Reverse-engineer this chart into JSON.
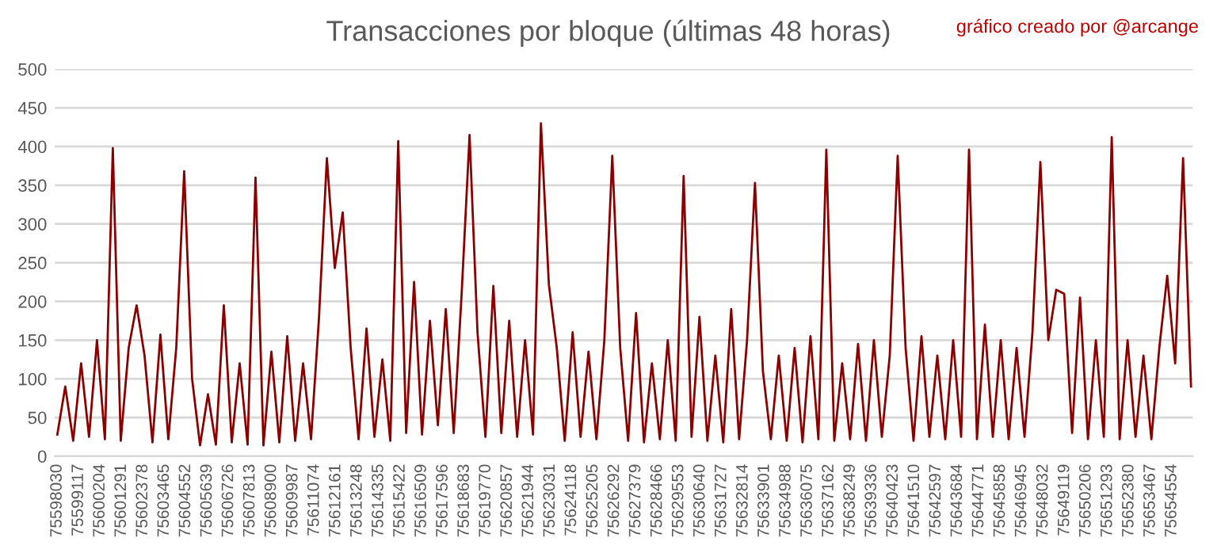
{
  "chart_data": {
    "type": "line",
    "title": "Transacciones por bloque (últimas 48 horas)",
    "annotations": [
      "gráfico creado por @arcange"
    ],
    "x": [
      75598030,
      75598432,
      75598834,
      75599236,
      75599638,
      75600040,
      75600442,
      75600844,
      75601246,
      75601648,
      75602050,
      75602452,
      75602854,
      75603256,
      75603658,
      75604060,
      75604462,
      75604864,
      75605266,
      75605668,
      75606070,
      75606472,
      75606874,
      75607276,
      75607678,
      75608080,
      75608482,
      75608884,
      75609286,
      75609688,
      75610090,
      75610492,
      75610894,
      75611296,
      75611698,
      75612100,
      75612502,
      75612904,
      75613306,
      75613708,
      75614110,
      75614512,
      75614914,
      75615316,
      75615718,
      75616120,
      75616522,
      75616924,
      75617326,
      75617728,
      75618130,
      75618532,
      75618934,
      75619336,
      75619738,
      75620140,
      75620542,
      75620944,
      75621346,
      75621748,
      75622150,
      75622552,
      75622954,
      75623356,
      75623758,
      75624160,
      75624562,
      75624964,
      75625366,
      75625768,
      75626170,
      75626572,
      75626974,
      75627376,
      75627778,
      75628180,
      75628582,
      75628984,
      75629386,
      75629788,
      75630190,
      75630592,
      75630994,
      75631396,
      75631798,
      75632200,
      75632602,
      75633004,
      75633406,
      75633808,
      75634210,
      75634612,
      75635014,
      75635416,
      75635818,
      75636220,
      75636622,
      75637024,
      75637426,
      75637828,
      75638230,
      75638632,
      75639034,
      75639436,
      75639838,
      75640240,
      75640642,
      75641044,
      75641446,
      75641848,
      75642250,
      75642652,
      75643054,
      75643456,
      75643858,
      75644260,
      75644662,
      75645064,
      75645466,
      75645868,
      75646270,
      75646672,
      75647074,
      75647476,
      75647878,
      75648280,
      75648682,
      75649084,
      75649486,
      75649888,
      75650290,
      75650692,
      75651094,
      75651496,
      75651898,
      75652300,
      75652702,
      75653104,
      75653506,
      75653908,
      75654310,
      75654712,
      75655114,
      75655516
    ],
    "series": [
      {
        "color": "#8b0000",
        "values": [
          28,
          90,
          20,
          120,
          25,
          150,
          22,
          398,
          20,
          140,
          195,
          130,
          18,
          157,
          22,
          140,
          368,
          100,
          14,
          80,
          15,
          195,
          18,
          120,
          15,
          360,
          14,
          135,
          18,
          155,
          20,
          120,
          22,
          178,
          385,
          243,
          315,
          140,
          22,
          165,
          25,
          125,
          20,
          407,
          30,
          225,
          28,
          175,
          40,
          190,
          30,
          210,
          415,
          160,
          25,
          220,
          30,
          175,
          25,
          150,
          28,
          430,
          222,
          140,
          20,
          160,
          25,
          135,
          22,
          150,
          388,
          140,
          20,
          185,
          18,
          120,
          22,
          150,
          20,
          362,
          25,
          180,
          20,
          130,
          18,
          190,
          22,
          150,
          353,
          110,
          22,
          130,
          20,
          140,
          18,
          155,
          22,
          396,
          20,
          120,
          22,
          145,
          20,
          150,
          25,
          130,
          388,
          140,
          20,
          155,
          25,
          130,
          22,
          150,
          25,
          396,
          22,
          170,
          25,
          150,
          22,
          140,
          25,
          160,
          380,
          150,
          215,
          210,
          30,
          205,
          22,
          150,
          25,
          412,
          22,
          150,
          25,
          130,
          22,
          140,
          233,
          120,
          385,
          90
        ]
      }
    ],
    "xlim": [
      75597900,
      75655600
    ],
    "xticks": [
      75598030,
      75599117,
      75600204,
      75601291,
      75602378,
      75603465,
      75604552,
      75605639,
      75606726,
      75607813,
      75608900,
      75609987,
      75611074,
      75612161,
      75613248,
      75614335,
      75615422,
      75616509,
      75617596,
      75618683,
      75619770,
      75620857,
      75621944,
      75623031,
      75624118,
      75625205,
      75626292,
      75627379,
      75628466,
      75629553,
      75630640,
      75631727,
      75632814,
      75633901,
      75634988,
      75636075,
      75637162,
      75638249,
      75639336,
      75640423,
      75641510,
      75642597,
      75643684,
      75644771,
      75645858,
      75646945,
      75648032,
      75649119,
      75650206,
      75651293,
      75652380,
      75653467,
      75654554
    ],
    "ylim": [
      0,
      500
    ],
    "yticks": [
      0,
      50,
      100,
      150,
      200,
      250,
      300,
      350,
      400,
      450,
      500
    ],
    "grid": "y",
    "legend": false,
    "line_style": "solid"
  }
}
